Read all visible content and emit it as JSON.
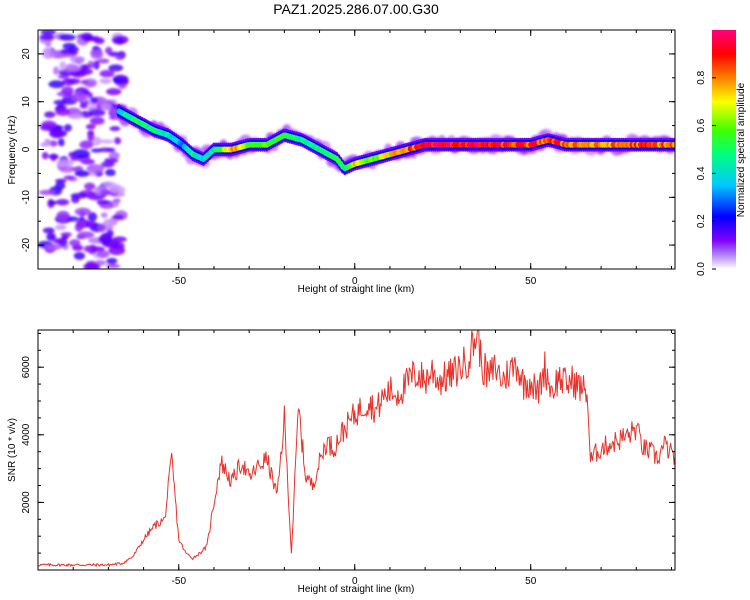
{
  "figure_title": "PAZ1.2025.286.07.00.G30",
  "colors": {
    "snr_line": "#e8322a",
    "axis": "#000000",
    "background": "#ffffff"
  },
  "chart_data": [
    {
      "type": "heatmap",
      "name": "spectrogram",
      "xlabel": "Height of straight line (km)",
      "ylabel": "Frequency (Hz)",
      "xlim": [
        -90,
        91
      ],
      "ylim": [
        -25,
        25
      ],
      "xticks": [
        -50,
        0,
        50
      ],
      "yticks": [
        -20,
        -10,
        0,
        10,
        20
      ],
      "colorbar": {
        "label": "Normalized spectral amplitude",
        "range": [
          0,
          1
        ],
        "ticks": [
          "0.0",
          "0.2",
          "0.4",
          "0.6",
          "0.8"
        ],
        "colormap": [
          "#ffffff",
          "#8000ff",
          "#0000ff",
          "#00c8ff",
          "#00ff80",
          "#40ff00",
          "#ffff00",
          "#ff8000",
          "#ff0000",
          "#ff0080"
        ]
      },
      "ridge": {
        "x": [
          -67,
          -62,
          -57,
          -53,
          -49,
          -46,
          -43,
          -40,
          -35,
          -30,
          -25,
          -20,
          -15,
          -10,
          -5,
          -3,
          0,
          5,
          10,
          15,
          20,
          30,
          40,
          50,
          55,
          60,
          70,
          80,
          91
        ],
        "frequency": [
          8,
          6,
          4,
          3,
          1,
          -1,
          -2,
          0,
          0,
          1,
          1,
          3,
          2,
          0,
          -2,
          -4,
          -3,
          -2,
          -1,
          0,
          1,
          1,
          1,
          1,
          2,
          1,
          1,
          1,
          1
        ],
        "amplitude": [
          0.35,
          0.5,
          0.45,
          0.4,
          0.3,
          0.45,
          0.35,
          0.4,
          0.8,
          0.5,
          0.55,
          0.5,
          0.45,
          0.45,
          0.5,
          0.45,
          0.75,
          0.55,
          0.7,
          0.8,
          0.95,
          0.95,
          0.9,
          0.85,
          0.85,
          0.85,
          0.75,
          0.85,
          0.8
        ]
      },
      "noise_region_x": [
        -88,
        -66
      ]
    },
    {
      "type": "line",
      "name": "snr",
      "xlabel": "Height of straight line (km)",
      "ylabel": "SNR (10 * v/v)",
      "xlim": [
        -90,
        91
      ],
      "ylim": [
        0,
        7100
      ],
      "xticks": [
        -50,
        0,
        50
      ],
      "yticks": [
        2000,
        4000,
        6000
      ],
      "x": [
        -90,
        -80,
        -70,
        -66,
        -63,
        -60,
        -57,
        -54,
        -52,
        -50,
        -48,
        -46,
        -44,
        -42,
        -40,
        -38,
        -35,
        -32,
        -30,
        -28,
        -25,
        -22,
        -20,
        -18,
        -16,
        -14,
        -12,
        -10,
        -8,
        -6,
        -4,
        -2,
        0,
        2,
        4,
        6,
        8,
        10,
        12,
        14,
        16,
        18,
        20,
        22,
        24,
        26,
        28,
        30,
        32,
        34,
        35,
        36,
        38,
        40,
        42,
        44,
        46,
        48,
        50,
        52,
        54,
        56,
        58,
        60,
        62,
        64,
        66,
        67,
        68,
        70,
        74,
        78,
        80,
        82,
        84,
        86,
        88,
        91
      ],
      "y": [
        150,
        150,
        150,
        200,
        400,
        900,
        1300,
        1500,
        3300,
        900,
        500,
        350,
        500,
        700,
        2000,
        3200,
        2600,
        3200,
        2700,
        3000,
        3300,
        2200,
        4500,
        500,
        4800,
        2800,
        2500,
        3200,
        3800,
        3600,
        4000,
        4300,
        4600,
        4800,
        5000,
        4700,
        5100,
        5300,
        5200,
        5400,
        5700,
        5800,
        5600,
        5900,
        5600,
        5700,
        5800,
        6000,
        6200,
        6800,
        7000,
        6100,
        5700,
        6000,
        5600,
        5900,
        6100,
        5500,
        5600,
        5200,
        6000,
        5300,
        5700,
        5500,
        5600,
        5400,
        5300,
        3200,
        3400,
        3600,
        3800,
        4000,
        4200,
        3600,
        3500,
        3300,
        3700,
        3300
      ]
    }
  ]
}
